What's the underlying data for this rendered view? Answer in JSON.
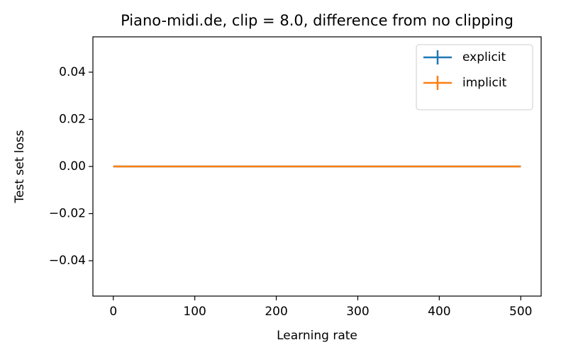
{
  "chart_data": {
    "type": "line",
    "title": "Piano-midi.de, clip = 8.0, difference from no clipping",
    "x_label": "Learning rate",
    "y_label": "Test set loss",
    "x": [
      0,
      500
    ],
    "series": [
      {
        "name": "explicit",
        "color": "#1f77b4",
        "values": [
          0,
          0
        ]
      },
      {
        "name": "implicit",
        "color": "#ff7f0e",
        "values": [
          0,
          0
        ]
      }
    ],
    "xlim": [
      -25,
      525
    ],
    "xticks": [
      0,
      100,
      200,
      300,
      400,
      500
    ],
    "ylim": [
      -0.055,
      0.055
    ],
    "yticks": [
      {
        "value": -0.04,
        "label": "−0.04"
      },
      {
        "value": -0.02,
        "label": "−0.02"
      },
      {
        "value": 0,
        "label": "0.00"
      },
      {
        "value": 0.02,
        "label": "0.02"
      },
      {
        "value": 0.04,
        "label": "0.04"
      }
    ],
    "legend": "upper right"
  }
}
